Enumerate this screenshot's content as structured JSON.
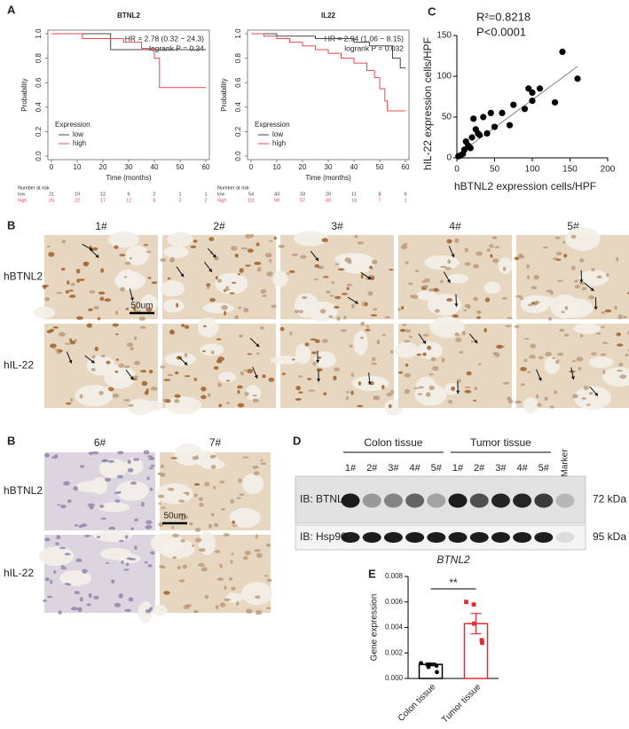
{
  "chart_data": [
    {
      "type": "km",
      "letter": "A",
      "title": "BTNL2",
      "xlabel": "Time (months)",
      "ylabel": "Probability",
      "xlim": [
        0,
        60
      ],
      "xticks": [
        0,
        10,
        20,
        30,
        40,
        50,
        60
      ],
      "ylim": [
        0,
        1
      ],
      "yticks": [
        {
          "value": 0,
          "label": "0.0"
        },
        {
          "value": 0.2,
          "label": "0.2"
        },
        {
          "value": 0.4,
          "label": "0.4"
        },
        {
          "value": 0.6,
          "label": "0.6"
        },
        {
          "value": 0.8,
          "label": "0.8"
        },
        {
          "value": 1,
          "label": "1.0"
        }
      ],
      "annotations": [
        "HR = 2.78 (0.32 − 24.3)",
        "logrank P = 0.34"
      ],
      "legend_title": "Expression",
      "legend": "lower left",
      "series": [
        {
          "name": "low",
          "color": "#444444",
          "x": [
            0,
            23,
            60
          ],
          "values": [
            1,
            0.87,
            0.87
          ]
        },
        {
          "name": "high",
          "color": "#e8474f",
          "x": [
            0,
            12,
            28,
            35,
            40,
            42,
            60
          ],
          "values": [
            1,
            0.96,
            0.93,
            0.88,
            0.8,
            0.56,
            0.56
          ]
        }
      ],
      "risk_table": {
        "title": "Number at risk",
        "rows": [
          {
            "name": "low",
            "values": [
              "21",
              "19",
              "12",
              "6",
              "2",
              "1",
              "1"
            ]
          },
          {
            "name": "high",
            "values": [
              "26",
              "22",
              "17",
              "12",
              "6",
              "3",
              "2"
            ]
          }
        ]
      }
    },
    {
      "type": "km",
      "title": "IL22",
      "xlabel": "Time (months)",
      "ylabel": "Probability",
      "xlim": [
        0,
        60
      ],
      "xticks": [
        0,
        10,
        20,
        30,
        40,
        50,
        60
      ],
      "ylim": [
        0,
        1
      ],
      "yticks": [
        {
          "value": 0,
          "label": "0.0"
        },
        {
          "value": 0.2,
          "label": "0.2"
        },
        {
          "value": 0.4,
          "label": "0.4"
        },
        {
          "value": 0.6,
          "label": "0.6"
        },
        {
          "value": 0.8,
          "label": "0.8"
        },
        {
          "value": 1,
          "label": "1.0"
        }
      ],
      "annotations": [
        "HR = 2.94 (1.06 − 8.15)",
        "logrank P = 0.032"
      ],
      "legend_title": "Expression",
      "legend": "lower left",
      "series": [
        {
          "name": "low",
          "color": "#444444",
          "x": [
            0,
            10,
            25,
            40,
            46,
            55,
            58,
            60
          ],
          "values": [
            1,
            0.98,
            0.96,
            0.93,
            0.9,
            0.8,
            0.72,
            0.72
          ]
        },
        {
          "name": "high",
          "color": "#e8474f",
          "x": [
            0,
            5,
            10,
            15,
            20,
            25,
            30,
            35,
            40,
            45,
            48,
            50,
            52,
            53,
            60
          ],
          "values": [
            1,
            0.98,
            0.96,
            0.93,
            0.9,
            0.87,
            0.84,
            0.8,
            0.76,
            0.7,
            0.64,
            0.55,
            0.45,
            0.37,
            0.37
          ]
        }
      ],
      "risk_table": {
        "title": "Number at risk",
        "rows": [
          {
            "name": "low",
            "values": [
              "54",
              "43",
              "33",
              "20",
              "11",
              "8",
              "6"
            ]
          },
          {
            "name": "high",
            "values": [
              "111",
              "90",
              "57",
              "40",
              "18",
              "7",
              "1"
            ]
          }
        ]
      }
    },
    {
      "type": "scatter",
      "letter": "C",
      "xlabel": "hBTNL2 expression cells/HPF",
      "ylabel": "hIL-22 expression cells/HPF",
      "xlim": [
        0,
        200
      ],
      "xticks": [
        0,
        50,
        100,
        150,
        200
      ],
      "ylim": [
        0,
        150
      ],
      "yticks": [
        0,
        50,
        100,
        150
      ],
      "annotations": [
        "R²=0.8218",
        "P<0.0001"
      ],
      "color": "#000000",
      "x": [
        2,
        5,
        8,
        10,
        12,
        15,
        18,
        20,
        22,
        25,
        28,
        30,
        35,
        40,
        45,
        50,
        60,
        70,
        75,
        90,
        95,
        100,
        100,
        110,
        130,
        140,
        160
      ],
      "values": [
        2,
        3,
        5,
        10,
        20,
        15,
        12,
        25,
        48,
        35,
        30,
        28,
        50,
        30,
        55,
        38,
        55,
        40,
        65,
        60,
        85,
        70,
        80,
        85,
        68,
        130,
        97
      ],
      "fit_line": {
        "x": [
          0,
          160
        ],
        "values": [
          3,
          112
        ]
      }
    },
    {
      "type": "bar",
      "letter": "E",
      "title": "BTNL2",
      "ylabel": "Gene expression",
      "categories": [
        "Colon tissue",
        "Tumor tissue"
      ],
      "values": [
        0.0011,
        0.0043
      ],
      "errors": [
        0.0001,
        0.0008
      ],
      "colors": [
        "#000000",
        "#e8272f"
      ],
      "points": [
        [
          0.0012,
          0.0009,
          0.0011,
          0.001,
          0.0005
        ],
        [
          0.006,
          0.0058,
          0.0043,
          0.003,
          0.0028
        ]
      ],
      "ylim": [
        0,
        0.008
      ],
      "yticks": [
        {
          "value": 0,
          "label": "0.000"
        },
        {
          "value": 0.002,
          "label": "0.002"
        },
        {
          "value": 0.004,
          "label": "0.004"
        },
        {
          "value": 0.006,
          "label": "0.006"
        },
        {
          "value": 0.008,
          "label": "0.008"
        }
      ],
      "significance": "**"
    }
  ],
  "ihc_1": {
    "letter": "B",
    "columns": [
      "1#",
      "2#",
      "3#",
      "4#",
      "5#"
    ],
    "rows": [
      "hBTNL2",
      "hIL-22"
    ],
    "scale_bar": "50um"
  },
  "ihc_2": {
    "letter": "B",
    "columns": [
      "6#",
      "7#"
    ],
    "rows": [
      "hBTNL2",
      "hIL-22"
    ],
    "scale_bar": "50um"
  },
  "blot": {
    "letter": "D",
    "groups": [
      "Colon tissue",
      "Tumor tissue"
    ],
    "lanes": [
      "1#",
      "2#",
      "3#",
      "4#",
      "5#",
      "1#",
      "2#",
      "3#",
      "4#",
      "5#"
    ],
    "marker": "Marker",
    "rows": [
      {
        "label": "IB: BTNL2",
        "size": "72 kDa"
      },
      {
        "label": "IB: Hsp90",
        "size": "95 kDa"
      }
    ]
  }
}
